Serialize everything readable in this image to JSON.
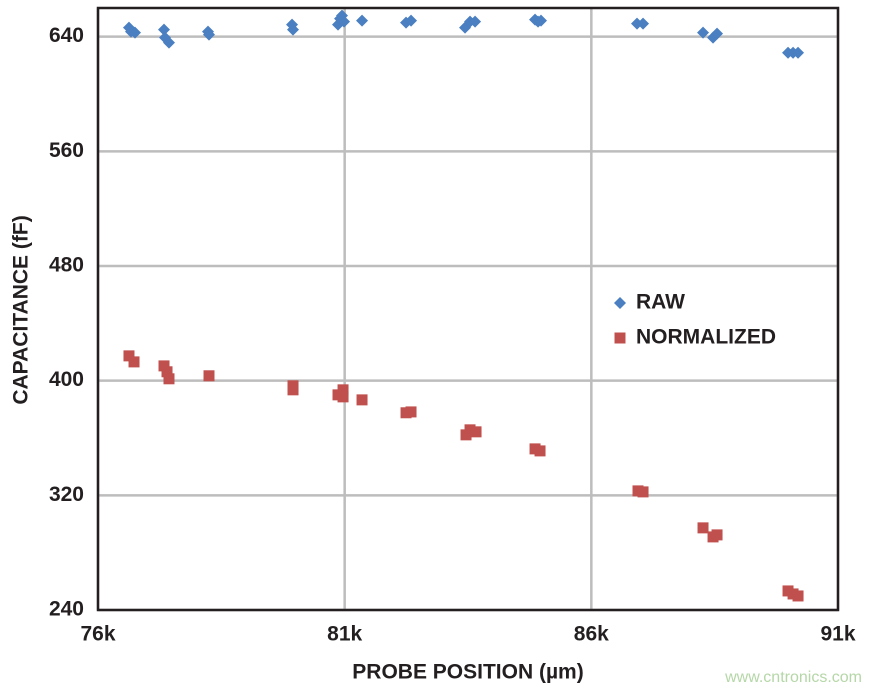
{
  "chart_data": {
    "type": "scatter",
    "x_label": "PROBE POSITION (µm)",
    "y_label": "CAPACITANCE (fF)",
    "xlim": [
      76000,
      91000
    ],
    "xticks": [
      {
        "value": 76000,
        "label": "76k"
      },
      {
        "value": 81000,
        "label": "81k"
      },
      {
        "value": 86000,
        "label": "86k"
      },
      {
        "value": 91000,
        "label": "91k"
      }
    ],
    "ylim": [
      240,
      660
    ],
    "yticks": [
      240,
      320,
      400,
      480,
      560,
      640
    ],
    "grid": true,
    "legend": "right",
    "watermark": "www.cntronics.com",
    "series": [
      {
        "name": "RAW",
        "marker": "diamond",
        "color": "#4a7fc1",
        "x": [
          76628,
          76669,
          76750,
          77338,
          77358,
          77439,
          78230,
          78250,
          79933,
          79953,
          80865,
          80906,
          80946,
          80987,
          81352,
          82244,
          82345,
          83440,
          83541,
          83643,
          84859,
          84920,
          84980,
          86926,
          87048,
          88264,
          88467,
          88548,
          89987,
          90089,
          90190
        ],
        "values": [
          646.3,
          643.5,
          642.8,
          644.9,
          639.3,
          635.8,
          643.5,
          641.4,
          648.4,
          644.9,
          648.4,
          652.6,
          654.7,
          650.5,
          651.2,
          649.8,
          651.2,
          646.3,
          650.5,
          650.5,
          651.9,
          650.5,
          651.2,
          649.1,
          649.1,
          642.8,
          639.3,
          642.1,
          628.8,
          628.8,
          628.8
        ]
      },
      {
        "name": "NORMALIZED",
        "marker": "square",
        "color": "#c0504d",
        "x": [
          76628,
          76730,
          77338,
          77399,
          77439,
          78250,
          79953,
          79953,
          80865,
          80967,
          80967,
          81352,
          82244,
          82345,
          83460,
          83541,
          83663,
          84859,
          84960,
          86946,
          87048,
          88264,
          88467,
          88548,
          89987,
          90089,
          90190
        ],
        "values": [
          417.3,
          413.1,
          410.3,
          406.2,
          401.3,
          403.4,
          396.4,
          393.6,
          390.1,
          388.7,
          393.6,
          386.6,
          377.6,
          378.2,
          362.2,
          365.7,
          364.3,
          352.4,
          351.0,
          323.1,
          322.4,
          297.3,
          291.0,
          292.4,
          253.3,
          251.2,
          249.8
        ]
      }
    ]
  }
}
